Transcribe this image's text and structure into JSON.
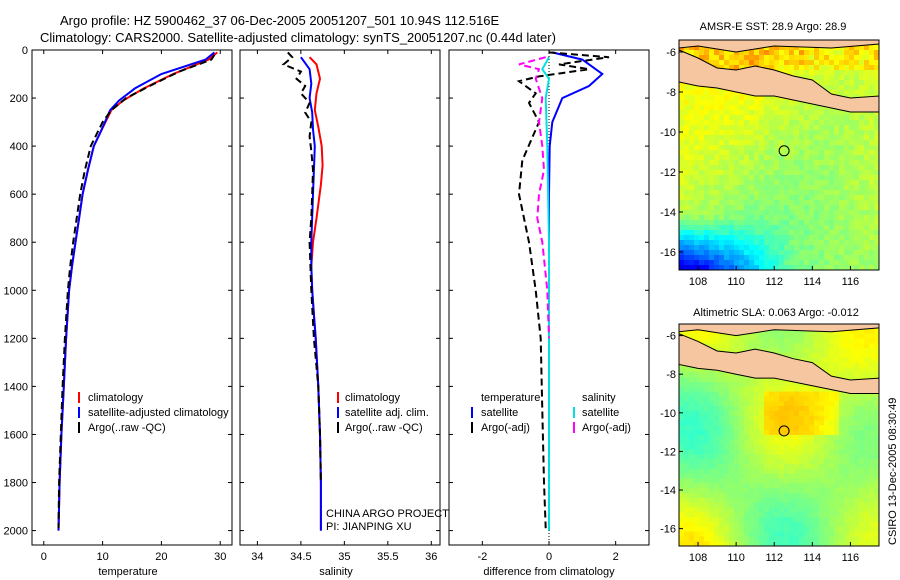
{
  "title": {
    "line1": "Argo profile: HZ 5900462_37 06-Dec-2005 20051207_501 10.94S 112.516E",
    "line2": "Climatology: CARS2000. Satellite-adjusted climatology: synTS_20051207.nc (0.44d later)"
  },
  "colors": {
    "climatology": "#ff0000",
    "satellite": "#0000ff",
    "argo": "#000000",
    "argo_salt_adj": "#ff00ff",
    "satellite_salt": "#00e0e0",
    "land": "#f5c6a0"
  },
  "chart_data": [
    {
      "type": "line",
      "name": "temperature-profile",
      "xlabel": "temperature",
      "ylabel": "",
      "xlim": [
        -2,
        32
      ],
      "ylim": [
        2060,
        0
      ],
      "x_ticks": [
        0,
        10,
        20,
        30
      ],
      "y_ticks": [
        0,
        200,
        400,
        600,
        800,
        1000,
        1200,
        1400,
        1600,
        1800,
        2000
      ],
      "y_tick_labels": [
        "0",
        "200",
        "400",
        "600",
        "800",
        "1000",
        "1200",
        "1400",
        "1600",
        "1800",
        "2000"
      ],
      "legend": [
        "climatology",
        "satellite-adjusted climatology",
        "Argo(..raw -QC)"
      ],
      "series": [
        {
          "name": "climatology",
          "color": "#ff0000",
          "dash": "",
          "x": [
            29.5,
            28.0,
            22.0,
            17.0,
            13.5,
            11.5,
            10.5,
            9.5,
            8.5,
            7.5,
            6.6,
            6.0,
            5.4,
            4.8,
            4.3,
            3.8,
            3.4,
            3.0,
            2.7,
            2.5
          ],
          "y": [
            10,
            40,
            100,
            160,
            210,
            250,
            300,
            350,
            400,
            500,
            600,
            700,
            800,
            900,
            1000,
            1200,
            1400,
            1600,
            1800,
            2000
          ]
        },
        {
          "name": "satellite-adjusted climatology",
          "color": "#0000ff",
          "dash": "",
          "x": [
            29.0,
            27.5,
            20.0,
            15.5,
            12.8,
            11.3,
            10.4,
            9.5,
            8.5,
            7.5,
            6.6,
            6.0,
            5.4,
            4.8,
            4.3,
            3.8,
            3.4,
            3.0,
            2.7,
            2.5
          ],
          "y": [
            10,
            40,
            100,
            160,
            210,
            250,
            300,
            350,
            400,
            500,
            600,
            700,
            800,
            900,
            1000,
            1200,
            1400,
            1600,
            1800,
            2000
          ]
        },
        {
          "name": "Argo(..raw -QC)",
          "color": "#000000",
          "dash": "7,4",
          "x": [
            29.0,
            28.5,
            23.0,
            18.0,
            14.0,
            11.5,
            10.0,
            9.0,
            8.0,
            7.0,
            6.2,
            5.6,
            5.0,
            4.5,
            4.1,
            3.6,
            3.2,
            2.9,
            2.6,
            2.5
          ],
          "y": [
            20,
            40,
            90,
            150,
            200,
            250,
            300,
            350,
            400,
            500,
            600,
            700,
            800,
            900,
            1000,
            1200,
            1400,
            1600,
            1800,
            1990
          ]
        }
      ]
    },
    {
      "type": "line",
      "name": "salinity-profile",
      "xlabel": "salinity",
      "xlim": [
        33.8,
        36.1
      ],
      "ylim": [
        2060,
        0
      ],
      "x_ticks": [
        34,
        34.5,
        35,
        35.5,
        36
      ],
      "x_tick_labels": [
        "34",
        "34.5",
        "35",
        "35.5",
        "36"
      ],
      "y_ticks": [
        0,
        200,
        400,
        600,
        800,
        1000,
        1200,
        1400,
        1600,
        1800,
        2000
      ],
      "legend": [
        "climatology",
        "satellite adj. clim.",
        "Argo(..raw -QC)"
      ],
      "annotation": [
        "CHINA ARGO PROJECT",
        "PI: JIANPING XU"
      ],
      "series": [
        {
          "name": "climatology",
          "color": "#ff0000",
          "dash": "",
          "x": [
            34.6,
            34.68,
            34.72,
            34.68,
            34.66,
            34.7,
            34.74,
            34.75,
            34.73,
            34.68,
            34.64,
            34.62,
            34.63,
            34.65,
            34.67,
            34.7,
            34.72,
            34.73,
            34.73
          ],
          "y": [
            30,
            60,
            120,
            180,
            250,
            320,
            400,
            480,
            560,
            700,
            800,
            900,
            1000,
            1100,
            1200,
            1400,
            1600,
            1800,
            2000
          ]
        },
        {
          "name": "satellite adj. clim.",
          "color": "#0000ff",
          "dash": "",
          "x": [
            34.5,
            34.6,
            34.62,
            34.6,
            34.63,
            34.64,
            34.66,
            34.65,
            34.64,
            34.62,
            34.62,
            34.63,
            34.65,
            34.67,
            34.7,
            34.72,
            34.73,
            34.73
          ],
          "y": [
            30,
            80,
            140,
            200,
            260,
            330,
            400,
            500,
            600,
            800,
            900,
            1000,
            1100,
            1200,
            1400,
            1600,
            1800,
            2000
          ]
        },
        {
          "name": "Argo(..raw -QC)",
          "color": "#000000",
          "dash": "7,4",
          "x": [
            34.35,
            34.4,
            34.3,
            34.5,
            34.45,
            34.55,
            34.5,
            34.6,
            34.55,
            34.62,
            34.6,
            34.62,
            34.64,
            34.63,
            34.62,
            34.6,
            34.62,
            34.65,
            34.7,
            34.72,
            34.73
          ],
          "y": [
            10,
            30,
            60,
            90,
            120,
            150,
            180,
            220,
            260,
            300,
            360,
            420,
            500,
            600,
            700,
            800,
            1000,
            1200,
            1400,
            1600,
            1800
          ]
        }
      ]
    },
    {
      "type": "line",
      "name": "difference-profile",
      "xlabel": "difference from climatology",
      "xlim": [
        -3,
        3
      ],
      "ylim": [
        2060,
        0
      ],
      "x_ticks": [
        -2,
        0,
        2
      ],
      "x_tick_labels": [
        "-2",
        "0",
        "2"
      ],
      "y_ticks": [
        0,
        200,
        400,
        600,
        800,
        1000,
        1200,
        1400,
        1600,
        1800,
        2000
      ],
      "legend_temp": [
        "temperature",
        "satellite",
        "Argo(-adj)"
      ],
      "legend_salt": [
        "salinity",
        "satellite",
        "Argo(-adj)"
      ],
      "series": [
        {
          "name": "temperature satellite",
          "color": "#0000ff",
          "dash": "",
          "x": [
            0.1,
            1.0,
            1.6,
            1.2,
            0.4,
            0.1,
            0.02,
            0.0,
            0.0,
            0.0,
            0.0
          ],
          "y": [
            10,
            40,
            100,
            150,
            200,
            300,
            400,
            600,
            1000,
            1500,
            2000
          ]
        },
        {
          "name": "temperature Argo(-adj)",
          "color": "#000000",
          "dash": "7,4",
          "x": [
            0.0,
            1.8,
            0.3,
            1.2,
            -0.3,
            -0.9,
            -0.4,
            -0.6,
            -0.3,
            -0.8,
            -0.9,
            -0.6,
            -0.4,
            -0.25,
            -0.2,
            -0.15,
            -0.1
          ],
          "y": [
            10,
            30,
            60,
            80,
            110,
            130,
            180,
            220,
            300,
            460,
            600,
            800,
            1000,
            1200,
            1500,
            1800,
            1990
          ]
        },
        {
          "name": "salinity satellite",
          "color": "#00e0e0",
          "dash": "",
          "x": [
            0.0,
            -0.2,
            0.0,
            -0.1,
            -0.05,
            0.0,
            0.0,
            0.0
          ],
          "y": [
            30,
            80,
            120,
            200,
            400,
            800,
            1400,
            2000
          ]
        },
        {
          "name": "salinity Argo(-adj)",
          "color": "#ff00ff",
          "dash": "7,4",
          "x": [
            -0.1,
            -0.9,
            -0.3,
            -0.4,
            -0.2,
            -0.3,
            -0.2,
            -0.15,
            -0.3,
            -0.35,
            -0.2,
            -0.05,
            0.0
          ],
          "y": [
            30,
            60,
            80,
            120,
            200,
            300,
            400,
            500,
            600,
            700,
            800,
            1000,
            1200
          ]
        }
      ]
    },
    {
      "type": "heatmap",
      "name": "sst-map",
      "title": "AMSR-E SST: 28.9  Argo: 28.9",
      "x_ticks": [
        108,
        110,
        112,
        114,
        116
      ],
      "y_ticks": [
        -6,
        -8,
        -10,
        -12,
        -14,
        -16
      ],
      "xlim": [
        107,
        117.5
      ],
      "ylim": [
        -16.9,
        -5.4
      ],
      "marker": {
        "lon": 112.516,
        "lat": -10.94
      }
    },
    {
      "type": "heatmap",
      "name": "sla-map",
      "title": "Altimetric SLA: 0.063  Argo: -0.012",
      "x_ticks": [
        108,
        110,
        112,
        114,
        116
      ],
      "y_ticks": [
        -6,
        -8,
        -10,
        -12,
        -14,
        -16
      ],
      "xlim": [
        107,
        117.5
      ],
      "ylim": [
        -16.9,
        -5.4
      ],
      "marker": {
        "lon": 112.516,
        "lat": -10.94
      }
    }
  ],
  "side_label": "CSIRO 13-Dec-2005 08:30:49"
}
